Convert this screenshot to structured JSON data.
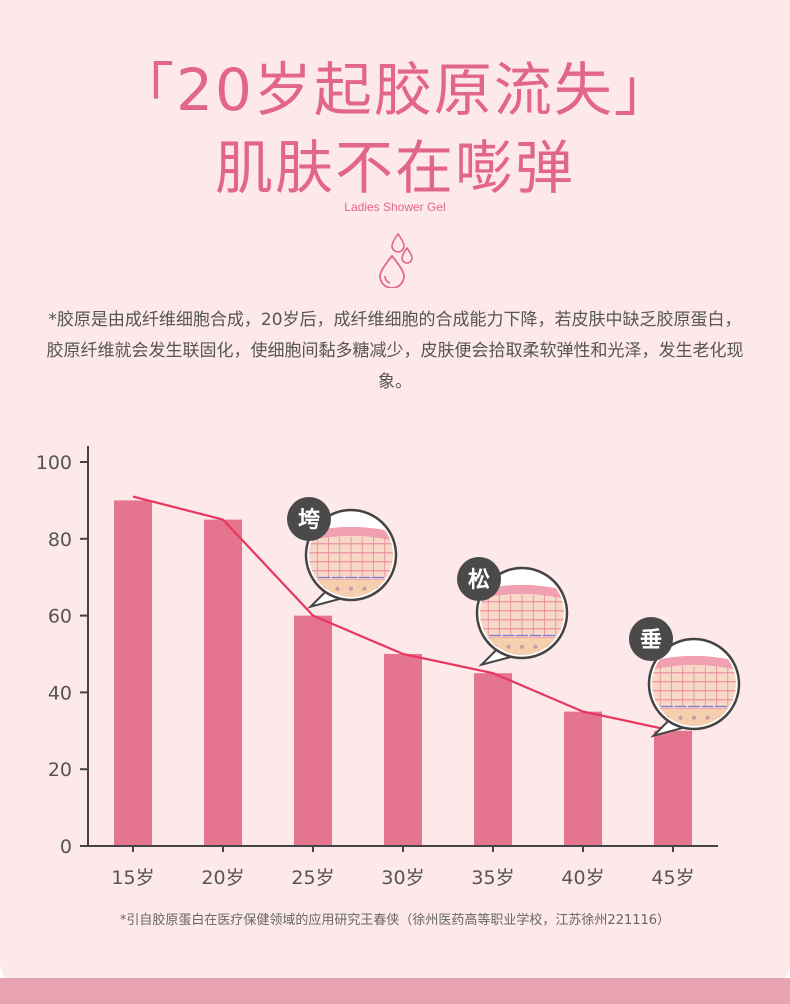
{
  "header": {
    "title_line1": "「20岁起胶原流失」",
    "title_line2": "肌肤不在嘭弹",
    "subtitle": "Ladies Shower Gel",
    "drops_icon": "water-drops-icon"
  },
  "description": "*胶原是由成纤维细胞合成，20岁后，成纤维细胞的合成能力下降，若皮肤中缺乏胶原蛋白，胶原纤维就会发生联固化，使细胞间黏多糖减少，皮肤便会拾取柔软弹性和光泽，发生老化现象。",
  "chart_data": {
    "type": "bar",
    "categories": [
      "15岁",
      "20岁",
      "25岁",
      "30岁",
      "35岁",
      "40岁",
      "45岁"
    ],
    "values": [
      90,
      85,
      60,
      50,
      45,
      35,
      30
    ],
    "trend_line": [
      91,
      85,
      60,
      50,
      45,
      35,
      30
    ],
    "ylim": [
      0,
      100
    ],
    "yticks": [
      0,
      20,
      40,
      60,
      80,
      100
    ],
    "bar_color": "#e5758f",
    "line_color": "#e9365f",
    "grid": false,
    "annotations": [
      {
        "label": "垮",
        "category": "25岁",
        "icon": "skin-cross-section-icon"
      },
      {
        "label": "松",
        "category": "35岁",
        "icon": "skin-cross-section-icon"
      },
      {
        "label": "垂",
        "category": "45岁",
        "icon": "skin-cross-section-icon"
      }
    ]
  },
  "footnote": "*引自胶原蛋白在医疗保健领域的应用研究王春侠（徐州医药高等职业学校，江苏徐州221116）"
}
